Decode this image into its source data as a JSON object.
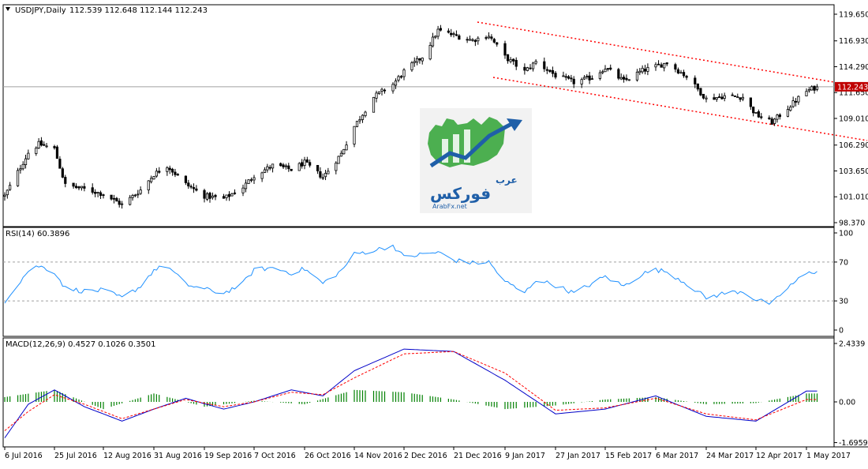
{
  "header": {
    "symbol": "USDJPY,Daily",
    "ohlc": "112.539 112.648 112.144 112.243"
  },
  "indicators": {
    "rsi_label": "RSI(14) 60.3896",
    "macd_label": "MACD(12,26,9) 0.4527 0.1026 0.3501"
  },
  "price_axis": {
    "ticks": [
      "119.650",
      "116.930",
      "114.290",
      "111.650",
      "109.010",
      "106.290",
      "103.650",
      "101.010",
      "98.370"
    ],
    "current_price": "112.243"
  },
  "rsi_axis": {
    "ticks": [
      "100",
      "70",
      "30",
      "0"
    ]
  },
  "macd_axis": {
    "ticks": [
      "2.4339",
      "0.00",
      "-1.6959"
    ]
  },
  "time_axis": {
    "labels": [
      "6 Jul 2016",
      "25 Jul 2016",
      "12 Aug 2016",
      "31 Aug 2016",
      "19 Sep 2016",
      "7 Oct 2016",
      "26 Oct 2016",
      "14 Nov 2016",
      "2 Dec 2016",
      "21 Dec 2016",
      "9 Jan 2017",
      "27 Jan 2017",
      "15 Feb 2017",
      "6 Mar 2017",
      "24 Mar 2017",
      "12 Apr 2017",
      "1 May 2017"
    ]
  },
  "logo": {
    "arabic_top": "عرب",
    "arabic_main": "فوركس",
    "latin": "ArabFx.net"
  },
  "colors": {
    "candle": "#000000",
    "trendline": "#ff0000",
    "rsi_line": "#1e90ff",
    "macd_line": "#0000c8",
    "signal_line": "#ff0000",
    "histogram": "#008000",
    "grid_level": "#a0a0a0",
    "logo_green": "#4caf50",
    "logo_arrow": "#1f5fa8"
  },
  "chart_data": [
    {
      "type": "candlestick",
      "title": "USDJPY,Daily",
      "ylim": [
        98.0,
        120.5
      ],
      "x_labels": [
        "6 Jul 2016",
        "25 Jul 2016",
        "12 Aug 2016",
        "31 Aug 2016",
        "19 Sep 2016",
        "7 Oct 2016",
        "26 Oct 2016",
        "14 Nov 2016",
        "2 Dec 2016",
        "21 Dec 2016",
        "9 Jan 2017",
        "27 Jan 2017",
        "15 Feb 2017",
        "6 Mar 2017",
        "24 Mar 2017",
        "12 Apr 2017",
        "1 May 2017"
      ],
      "close_path": [
        [
          "6 Jul 2016",
          101.1
        ],
        [
          "15 Jul 2016",
          105.5
        ],
        [
          "19 Jul 2016",
          106.4
        ],
        [
          "25 Jul 2016",
          105.9
        ],
        [
          "29 Jul 2016",
          102.2
        ],
        [
          "5 Aug 2016",
          101.8
        ],
        [
          "12 Aug 2016",
          101.3
        ],
        [
          "19 Aug 2016",
          100.2
        ],
        [
          "26 Aug 2016",
          101.7
        ],
        [
          "31 Aug 2016",
          103.3
        ],
        [
          "5 Sep 2016",
          104.2
        ],
        [
          "12 Sep 2016",
          102.3
        ],
        [
          "19 Sep 2016",
          101.1
        ],
        [
          "26 Sep 2016",
          100.8
        ],
        [
          "3 Oct 2016",
          102.0
        ],
        [
          "7 Oct 2016",
          103.2
        ],
        [
          "14 Oct 2016",
          104.2
        ],
        [
          "21 Oct 2016",
          103.8
        ],
        [
          "26 Oct 2016",
          104.5
        ],
        [
          "2 Nov 2016",
          103.0
        ],
        [
          "9 Nov 2016",
          105.4
        ],
        [
          "14 Nov 2016",
          108.2
        ],
        [
          "21 Nov 2016",
          111.2
        ],
        [
          "28 Nov 2016",
          112.5
        ],
        [
          "2 Dec 2016",
          113.8
        ],
        [
          "9 Dec 2016",
          115.3
        ],
        [
          "15 Dec 2016",
          118.0
        ],
        [
          "21 Dec 2016",
          117.5
        ],
        [
          "28 Dec 2016",
          117.0
        ],
        [
          "3 Jan 2017",
          117.5
        ],
        [
          "9 Jan 2017",
          115.3
        ],
        [
          "16 Jan 2017",
          113.8
        ],
        [
          "20 Jan 2017",
          114.8
        ],
        [
          "27 Jan 2017",
          113.4
        ],
        [
          "3 Feb 2017",
          112.7
        ],
        [
          "10 Feb 2017",
          113.2
        ],
        [
          "15 Feb 2017",
          114.2
        ],
        [
          "22 Feb 2017",
          112.8
        ],
        [
          "1 Mar 2017",
          113.9
        ],
        [
          "6 Mar 2017",
          114.3
        ],
        [
          "10 Mar 2017",
          114.7
        ],
        [
          "17 Mar 2017",
          113.3
        ],
        [
          "24 Mar 2017",
          111.0
        ],
        [
          "31 Mar 2017",
          111.3
        ],
        [
          "7 Apr 2017",
          111.2
        ],
        [
          "12 Apr 2017",
          109.4
        ],
        [
          "18 Apr 2017",
          108.6
        ],
        [
          "24 Apr 2017",
          110.1
        ],
        [
          "1 May 2017",
          111.8
        ],
        [
          "5 May 2017",
          112.24
        ]
      ],
      "annotations": [
        "upper descending trendline",
        "lower descending trendline",
        "current price 112.243"
      ]
    },
    {
      "type": "line",
      "title": "RSI(14) 60.3896",
      "ylim": [
        0,
        100
      ],
      "levels": [
        30,
        70
      ],
      "series": [
        {
          "name": "RSI(14)",
          "points": [
            [
              "6 Jul 2016",
              30
            ],
            [
              "15 Jul 2016",
              61
            ],
            [
              "19 Jul 2016",
              66
            ],
            [
              "25 Jul 2016",
              60
            ],
            [
              "29 Jul 2016",
              43
            ],
            [
              "5 Aug 2016",
              40
            ],
            [
              "12 Aug 2016",
              41
            ],
            [
              "19 Aug 2016",
              33
            ],
            [
              "26 Aug 2016",
              45
            ],
            [
              "31 Aug 2016",
              62
            ],
            [
              "5 Sep 2016",
              66
            ],
            [
              "12 Sep 2016",
              47
            ],
            [
              "19 Sep 2016",
              42
            ],
            [
              "26 Sep 2016",
              38
            ],
            [
              "3 Oct 2016",
              48
            ],
            [
              "7 Oct 2016",
              62
            ],
            [
              "14 Oct 2016",
              64
            ],
            [
              "21 Oct 2016",
              59
            ],
            [
              "26 Oct 2016",
              63
            ],
            [
              "2 Nov 2016",
              48
            ],
            [
              "9 Nov 2016",
              61
            ],
            [
              "14 Nov 2016",
              78
            ],
            [
              "21 Nov 2016",
              82
            ],
            [
              "28 Nov 2016",
              87
            ],
            [
              "2 Dec 2016",
              75
            ],
            [
              "9 Dec 2016",
              78
            ],
            [
              "15 Dec 2016",
              80
            ],
            [
              "21 Dec 2016",
              72
            ],
            [
              "28 Dec 2016",
              69
            ],
            [
              "3 Jan 2017",
              70
            ],
            [
              "9 Jan 2017",
              50
            ],
            [
              "16 Jan 2017",
              38
            ],
            [
              "20 Jan 2017",
              52
            ],
            [
              "27 Jan 2017",
              46
            ],
            [
              "3 Feb 2017",
              38
            ],
            [
              "10 Feb 2017",
              48
            ],
            [
              "15 Feb 2017",
              55
            ],
            [
              "22 Feb 2017",
              45
            ],
            [
              "1 Mar 2017",
              58
            ],
            [
              "6 Mar 2017",
              62
            ],
            [
              "10 Mar 2017",
              60
            ],
            [
              "17 Mar 2017",
              48
            ],
            [
              "24 Mar 2017",
              33
            ],
            [
              "31 Mar 2017",
              38
            ],
            [
              "7 Apr 2017",
              40
            ],
            [
              "12 Apr 2017",
              31
            ],
            [
              "18 Apr 2017",
              27
            ],
            [
              "24 Apr 2017",
              44
            ],
            [
              "1 May 2017",
              58
            ],
            [
              "5 May 2017",
              60.39
            ]
          ]
        }
      ]
    },
    {
      "type": "line",
      "title": "MACD(12,26,9) 0.4527 0.1026 0.3501",
      "ylim": [
        -1.6959,
        2.4339
      ],
      "series": [
        {
          "name": "MACD",
          "points": [
            [
              "6 Jul 2016",
              -1.5
            ],
            [
              "15 Jul 2016",
              -0.1
            ],
            [
              "25 Jul 2016",
              0.5
            ],
            [
              "5 Aug 2016",
              -0.2
            ],
            [
              "19 Aug 2016",
              -0.8
            ],
            [
              "31 Aug 2016",
              -0.3
            ],
            [
              "12 Sep 2016",
              0.15
            ],
            [
              "26 Sep 2016",
              -0.3
            ],
            [
              "7 Oct 2016",
              0.0
            ],
            [
              "21 Oct 2016",
              0.5
            ],
            [
              "2 Nov 2016",
              0.25
            ],
            [
              "14 Nov 2016",
              1.3
            ],
            [
              "2 Dec 2016",
              2.2
            ],
            [
              "21 Dec 2016",
              2.1
            ],
            [
              "9 Jan 2017",
              0.9
            ],
            [
              "27 Jan 2017",
              -0.5
            ],
            [
              "15 Feb 2017",
              -0.3
            ],
            [
              "6 Mar 2017",
              0.25
            ],
            [
              "24 Mar 2017",
              -0.6
            ],
            [
              "12 Apr 2017",
              -0.8
            ],
            [
              "1 May 2017",
              0.45
            ]
          ]
        },
        {
          "name": "Signal",
          "points": [
            [
              "6 Jul 2016",
              -1.2
            ],
            [
              "15 Jul 2016",
              -0.4
            ],
            [
              "25 Jul 2016",
              0.3
            ],
            [
              "5 Aug 2016",
              -0.1
            ],
            [
              "19 Aug 2016",
              -0.7
            ],
            [
              "31 Aug 2016",
              -0.3
            ],
            [
              "12 Sep 2016",
              0.1
            ],
            [
              "26 Sep 2016",
              -0.2
            ],
            [
              "7 Oct 2016",
              0.0
            ],
            [
              "21 Oct 2016",
              0.4
            ],
            [
              "2 Nov 2016",
              0.3
            ],
            [
              "14 Nov 2016",
              1.0
            ],
            [
              "2 Dec 2016",
              2.0
            ],
            [
              "21 Dec 2016",
              2.1
            ],
            [
              "9 Jan 2017",
              1.2
            ],
            [
              "27 Jan 2017",
              -0.35
            ],
            [
              "15 Feb 2017",
              -0.25
            ],
            [
              "6 Mar 2017",
              0.15
            ],
            [
              "24 Mar 2017",
              -0.5
            ],
            [
              "12 Apr 2017",
              -0.75
            ],
            [
              "1 May 2017",
              0.1
            ]
          ]
        },
        {
          "name": "Histogram",
          "points": [
            [
              "6 Jul 2016",
              0.2
            ],
            [
              "25 Jul 2016",
              0.5
            ],
            [
              "12 Aug 2016",
              -0.3
            ],
            [
              "31 Aug 2016",
              0.35
            ],
            [
              "19 Sep 2016",
              -0.2
            ],
            [
              "7 Oct 2016",
              0.05
            ],
            [
              "26 Oct 2016",
              -0.1
            ],
            [
              "14 Nov 2016",
              0.5
            ],
            [
              "2 Dec 2016",
              0.4
            ],
            [
              "21 Dec 2016",
              0.1
            ],
            [
              "9 Jan 2017",
              -0.3
            ],
            [
              "27 Jan 2017",
              -0.15
            ],
            [
              "15 Feb 2017",
              0.1
            ],
            [
              "6 Mar 2017",
              0.2
            ],
            [
              "24 Mar 2017",
              -0.1
            ],
            [
              "12 Apr 2017",
              -0.05
            ],
            [
              "1 May 2017",
              0.35
            ]
          ]
        }
      ]
    }
  ]
}
